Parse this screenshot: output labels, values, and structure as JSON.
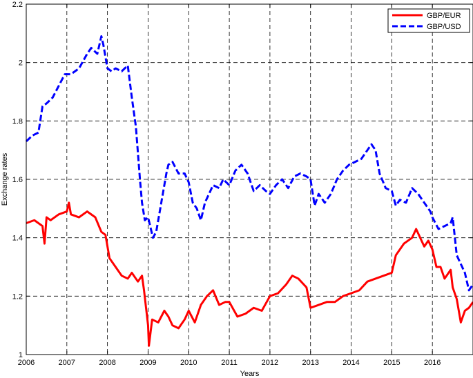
{
  "chart_data": {
    "type": "line",
    "xlabel": "Years",
    "ylabel": "Exchange rates",
    "xlim": [
      2006,
      2017
    ],
    "ylim": [
      1.0,
      2.2
    ],
    "xticks": [
      2006,
      2007,
      2008,
      2009,
      2010,
      2011,
      2012,
      2013,
      2014,
      2015,
      2016
    ],
    "yticks": [
      1,
      1.2,
      1.4,
      1.6,
      1.8,
      2,
      2.2
    ],
    "grid": true,
    "legend_position": "top-right",
    "series": [
      {
        "name": "GBP/EUR",
        "color": "#ff0000",
        "line_style": "solid",
        "x": [
          2006.0,
          2006.2,
          2006.4,
          2006.45,
          2006.5,
          2006.6,
          2006.8,
          2007.0,
          2007.05,
          2007.1,
          2007.3,
          2007.5,
          2007.7,
          2007.85,
          2007.95,
          2008.05,
          2008.2,
          2008.35,
          2008.5,
          2008.6,
          2008.75,
          2008.85,
          2008.9,
          2008.95,
          2009.0,
          2009.02,
          2009.1,
          2009.25,
          2009.4,
          2009.5,
          2009.6,
          2009.75,
          2009.9,
          2010.0,
          2010.15,
          2010.3,
          2010.45,
          2010.6,
          2010.75,
          2010.9,
          2011.0,
          2011.2,
          2011.4,
          2011.6,
          2011.8,
          2012.0,
          2012.2,
          2012.4,
          2012.55,
          2012.7,
          2012.9,
          2013.0,
          2013.2,
          2013.4,
          2013.6,
          2013.8,
          2014.0,
          2014.2,
          2014.4,
          2014.6,
          2014.8,
          2015.0,
          2015.1,
          2015.3,
          2015.5,
          2015.6,
          2015.8,
          2015.9,
          2016.0,
          2016.1,
          2016.2,
          2016.3,
          2016.45,
          2016.5,
          2016.6,
          2016.7,
          2016.8,
          2016.9,
          2017.0
        ],
        "values": [
          1.45,
          1.46,
          1.44,
          1.38,
          1.47,
          1.46,
          1.48,
          1.49,
          1.52,
          1.48,
          1.47,
          1.49,
          1.47,
          1.42,
          1.41,
          1.33,
          1.3,
          1.27,
          1.26,
          1.28,
          1.25,
          1.27,
          1.22,
          1.16,
          1.1,
          1.03,
          1.12,
          1.11,
          1.15,
          1.13,
          1.1,
          1.09,
          1.12,
          1.15,
          1.11,
          1.17,
          1.2,
          1.22,
          1.17,
          1.18,
          1.18,
          1.13,
          1.14,
          1.16,
          1.15,
          1.2,
          1.21,
          1.24,
          1.27,
          1.26,
          1.23,
          1.16,
          1.17,
          1.18,
          1.18,
          1.2,
          1.21,
          1.22,
          1.25,
          1.26,
          1.27,
          1.28,
          1.34,
          1.38,
          1.4,
          1.43,
          1.37,
          1.39,
          1.36,
          1.3,
          1.3,
          1.26,
          1.29,
          1.23,
          1.19,
          1.11,
          1.15,
          1.16,
          1.18
        ]
      },
      {
        "name": "GBP/USD",
        "color": "#0000ff",
        "line_style": "dashed",
        "x": [
          2006.0,
          2006.15,
          2006.3,
          2006.4,
          2006.5,
          2006.65,
          2006.8,
          2006.95,
          2007.1,
          2007.3,
          2007.5,
          2007.6,
          2007.75,
          2007.85,
          2007.9,
          2008.0,
          2008.1,
          2008.2,
          2008.35,
          2008.5,
          2008.6,
          2008.7,
          2008.8,
          2008.85,
          2008.92,
          2009.0,
          2009.12,
          2009.2,
          2009.3,
          2009.45,
          2009.5,
          2009.6,
          2009.75,
          2009.9,
          2010.0,
          2010.1,
          2010.2,
          2010.3,
          2010.4,
          2010.5,
          2010.6,
          2010.75,
          2010.85,
          2011.0,
          2011.15,
          2011.3,
          2011.45,
          2011.6,
          2011.75,
          2011.9,
          2012.0,
          2012.15,
          2012.3,
          2012.45,
          2012.6,
          2012.75,
          2012.9,
          2013.0,
          2013.1,
          2013.2,
          2013.35,
          2013.5,
          2013.65,
          2013.8,
          2013.95,
          2014.1,
          2014.25,
          2014.4,
          2014.5,
          2014.6,
          2014.7,
          2014.85,
          2015.0,
          2015.1,
          2015.2,
          2015.35,
          2015.5,
          2015.65,
          2015.8,
          2015.95,
          2016.0,
          2016.15,
          2016.3,
          2016.45,
          2016.5,
          2016.6,
          2016.7,
          2016.8,
          2016.9,
          2017.0
        ],
        "values": [
          1.73,
          1.75,
          1.76,
          1.85,
          1.86,
          1.88,
          1.92,
          1.96,
          1.96,
          1.98,
          2.03,
          2.05,
          2.03,
          2.09,
          2.06,
          1.98,
          1.97,
          1.98,
          1.97,
          1.99,
          1.88,
          1.78,
          1.6,
          1.52,
          1.46,
          1.47,
          1.4,
          1.42,
          1.5,
          1.62,
          1.65,
          1.66,
          1.62,
          1.62,
          1.59,
          1.52,
          1.5,
          1.46,
          1.52,
          1.55,
          1.58,
          1.57,
          1.6,
          1.58,
          1.63,
          1.65,
          1.62,
          1.56,
          1.58,
          1.56,
          1.55,
          1.58,
          1.6,
          1.57,
          1.61,
          1.62,
          1.61,
          1.6,
          1.51,
          1.55,
          1.52,
          1.55,
          1.6,
          1.63,
          1.65,
          1.66,
          1.67,
          1.7,
          1.72,
          1.7,
          1.62,
          1.57,
          1.56,
          1.51,
          1.53,
          1.52,
          1.57,
          1.55,
          1.52,
          1.49,
          1.47,
          1.43,
          1.44,
          1.45,
          1.47,
          1.34,
          1.31,
          1.28,
          1.22,
          1.24
        ]
      }
    ]
  }
}
